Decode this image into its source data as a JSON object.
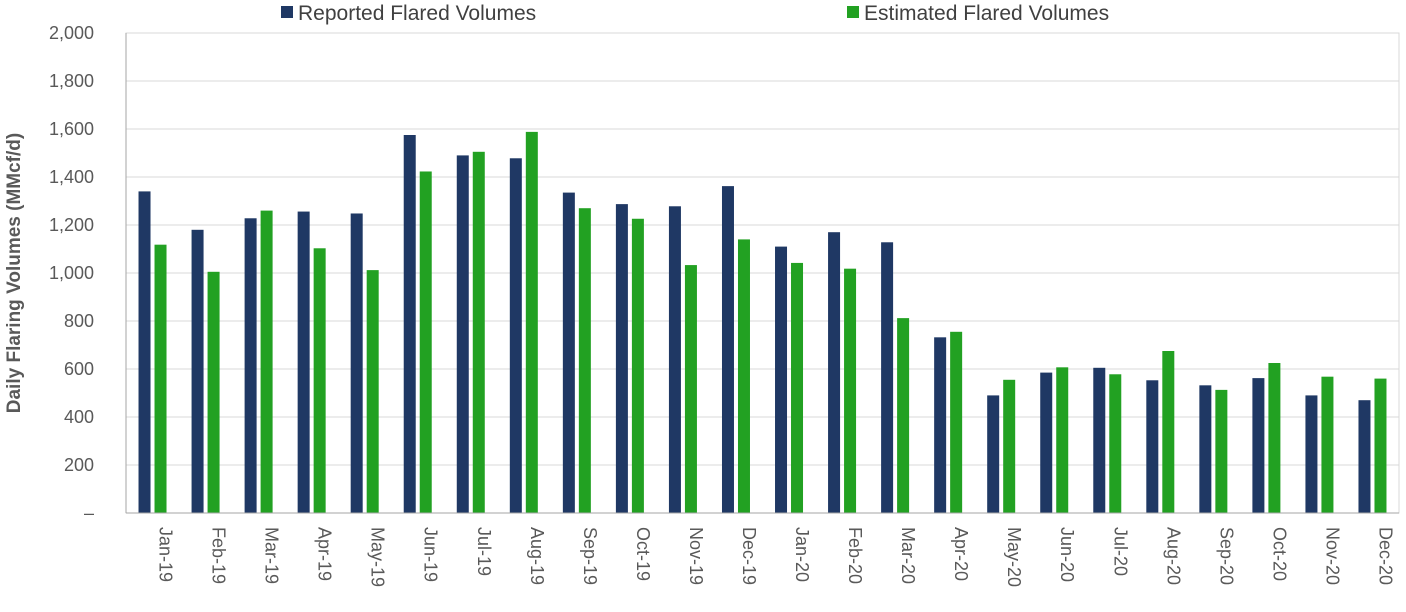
{
  "chart_data": {
    "type": "bar",
    "title": "",
    "xlabel": "",
    "ylabel": "Daily Flaring Volumes (MMcf/d)",
    "ylim": [
      0,
      2000
    ],
    "yticks": [
      {
        "value": 0,
        "label": "–"
      },
      {
        "value": 200,
        "label": "200"
      },
      {
        "value": 400,
        "label": "400"
      },
      {
        "value": 600,
        "label": "600"
      },
      {
        "value": 800,
        "label": "800"
      },
      {
        "value": 1000,
        "label": "1,000"
      },
      {
        "value": 1200,
        "label": "1,200"
      },
      {
        "value": 1400,
        "label": "1,400"
      },
      {
        "value": 1600,
        "label": "1,600"
      },
      {
        "value": 1800,
        "label": "1,800"
      },
      {
        "value": 2000,
        "label": "2,000"
      }
    ],
    "grid": true,
    "legend_position": "top",
    "categories": [
      "Jan-19",
      "Feb-19",
      "Mar-19",
      "Apr-19",
      "May-19",
      "Jun-19",
      "Jul-19",
      "Aug-19",
      "Sep-19",
      "Oct-19",
      "Nov-19",
      "Dec-19",
      "Jan-20",
      "Feb-20",
      "Mar-20",
      "Apr-20",
      "May-20",
      "Jun-20",
      "Jul-20",
      "Aug-20",
      "Sep-20",
      "Oct-20",
      "Nov-20",
      "Dec-20"
    ],
    "series": [
      {
        "name": "Reported Flared Volumes",
        "color": "#1f3864",
        "values": [
          1340,
          1180,
          1228,
          1256,
          1248,
          1575,
          1490,
          1478,
          1335,
          1287,
          1278,
          1362,
          1110,
          1170,
          1128,
          732,
          490,
          585,
          605,
          553,
          532,
          562,
          490,
          470
        ]
      },
      {
        "name": "Estimated Flared Volumes",
        "color": "#22a122",
        "values": [
          1118,
          1005,
          1260,
          1103,
          1012,
          1423,
          1505,
          1588,
          1270,
          1226,
          1033,
          1140,
          1042,
          1018,
          812,
          755,
          555,
          607,
          578,
          675,
          513,
          625,
          568,
          560
        ]
      }
    ]
  }
}
